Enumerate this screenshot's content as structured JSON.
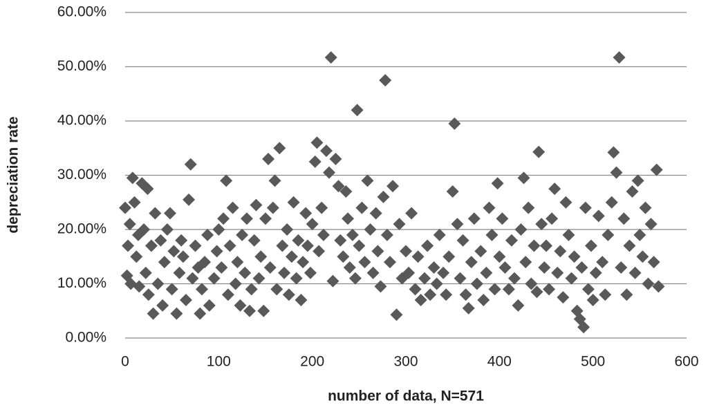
{
  "chart_data": {
    "type": "scatter",
    "x_label": "number of data, N=571",
    "y_label": "depreciation rate",
    "color": "#595959",
    "marker": "diamond",
    "grid": true,
    "xlim": [
      0,
      600
    ],
    "xticks": [
      0,
      100,
      200,
      300,
      400,
      500,
      600
    ],
    "ylim": [
      0,
      60
    ],
    "yticks": [
      {
        "value": 0,
        "label": "0.00%"
      },
      {
        "value": 10,
        "label": "10.00%"
      },
      {
        "value": 20,
        "label": "20.00%"
      },
      {
        "value": 30,
        "label": "30.00%"
      },
      {
        "value": 40,
        "label": "40.00%"
      },
      {
        "value": 50,
        "label": "50.00%"
      },
      {
        "value": 60,
        "label": "60.00%"
      }
    ],
    "x": [
      0,
      2,
      3,
      5,
      6,
      8,
      10,
      12,
      14,
      15,
      18,
      20,
      22,
      24,
      25,
      28,
      30,
      32,
      35,
      38,
      40,
      42,
      45,
      48,
      50,
      52,
      55,
      58,
      60,
      62,
      65,
      68,
      70,
      72,
      75,
      78,
      80,
      82,
      85,
      88,
      90,
      95,
      98,
      100,
      103,
      105,
      108,
      110,
      112,
      115,
      118,
      120,
      123,
      125,
      128,
      130,
      133,
      135,
      138,
      140,
      143,
      145,
      148,
      150,
      153,
      155,
      158,
      160,
      162,
      165,
      168,
      170,
      173,
      175,
      178,
      180,
      183,
      185,
      188,
      190,
      193,
      195,
      198,
      200,
      203,
      205,
      207,
      210,
      212,
      215,
      218,
      220,
      222,
      225,
      228,
      230,
      233,
      236,
      238,
      240,
      243,
      246,
      248,
      250,
      253,
      256,
      259,
      262,
      265,
      268,
      270,
      273,
      276,
      278,
      280,
      283,
      286,
      290,
      293,
      296,
      300,
      303,
      306,
      310,
      313,
      316,
      320,
      323,
      326,
      330,
      333,
      336,
      340,
      343,
      346,
      350,
      352,
      355,
      358,
      361,
      364,
      367,
      370,
      373,
      376,
      380,
      383,
      386,
      389,
      392,
      395,
      398,
      400,
      403,
      406,
      410,
      413,
      416,
      420,
      423,
      426,
      428,
      431,
      434,
      437,
      440,
      442,
      445,
      448,
      450,
      453,
      456,
      459,
      462,
      465,
      468,
      471,
      474,
      477,
      480,
      483,
      486,
      488,
      490,
      492,
      495,
      498,
      500,
      503,
      506,
      510,
      513,
      516,
      520,
      522,
      525,
      528,
      530,
      533,
      536,
      539,
      542,
      545,
      548,
      550,
      553,
      556,
      559,
      562,
      565,
      568,
      570
    ],
    "values": [
      24,
      11.5,
      17,
      21,
      10,
      29.5,
      25,
      15,
      19,
      9.5,
      28.5,
      20,
      12,
      27.5,
      8,
      17,
      4.5,
      23,
      10,
      18,
      6,
      14,
      20,
      23,
      9,
      16,
      4.5,
      12,
      18,
      15,
      7,
      25.5,
      32,
      11,
      17,
      13,
      4.5,
      9,
      14,
      19,
      6,
      11,
      16,
      20,
      13,
      22,
      29,
      8,
      17,
      24,
      10,
      14,
      6,
      19,
      12,
      22,
      5,
      9,
      18,
      24.5,
      11,
      15,
      5,
      22,
      33,
      13,
      24,
      29,
      9,
      35,
      17,
      12,
      20,
      8,
      15,
      25,
      11,
      18,
      7,
      14,
      23,
      17,
      12,
      21,
      32.5,
      36,
      16,
      24,
      19,
      34.5,
      30.5,
      51.7,
      10.5,
      33,
      28,
      18,
      15,
      27,
      22,
      13,
      19,
      11,
      42,
      17,
      24,
      14,
      29,
      20,
      12,
      23,
      16,
      9.5,
      26,
      47.5,
      19,
      14,
      28,
      4.3,
      21,
      11,
      16,
      12,
      23,
      9,
      15,
      7,
      11,
      17,
      8,
      13,
      10,
      19,
      12,
      8,
      15,
      27,
      39.5,
      21,
      11,
      18,
      8,
      5.5,
      14,
      22,
      10,
      16,
      7,
      12,
      24,
      19,
      9,
      28.5,
      15,
      22,
      13,
      9,
      18,
      11,
      6,
      20,
      29.5,
      14,
      24,
      10,
      17,
      8.5,
      34.3,
      21,
      13,
      17,
      9,
      22,
      27.5,
      12,
      16,
      7.5,
      25,
      19,
      11,
      15,
      5,
      3.5,
      13,
      2,
      24,
      9,
      17,
      7,
      12,
      22.5,
      14,
      8,
      19,
      25,
      34.2,
      30.5,
      51.7,
      13,
      22,
      8,
      17,
      27,
      12,
      29,
      19,
      15,
      24,
      10,
      21,
      14,
      31,
      9.5
    ]
  }
}
